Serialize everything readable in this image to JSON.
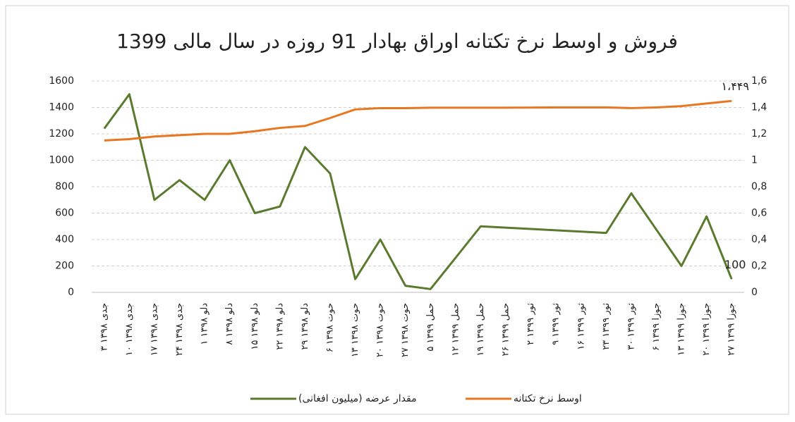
{
  "chart_data": {
    "type": "line",
    "title": "فروش و اوسط نرخ تکتانه اوراق بهادار 91 روزه در سال مالی 1399",
    "categories": [
      "۳ جدی ۱۳۹۸",
      "۱۰ جدی ۱۳۹۸",
      "۱۷ جدی ۱۳۹۸",
      "۲۴ جدی ۱۳۹۸",
      "۱ دلو ۱۳۹۸",
      "۸ دلو ۱۳۹۸",
      "۱۵ دلو ۱۳۹۸",
      "۲۲ دلو ۱۳۹۸",
      "۲۹ دلو ۱۳۹۸",
      "۶ حوت ۱۳۹۸",
      "۱۳ حوت ۱۳۹۸",
      "۲۰ حوت ۱۳۹۸",
      "۲۷ حوت ۱۳۹۸",
      "۵ حمل ۱۳۹۹",
      "۱۲ حمل ۱۳۹۹",
      "۱۹ حمل ۱۳۹۹",
      "۲۶ حمل ۱۳۹۹",
      "۲ ثور ۱۳۹۹",
      "۹ ثور ۱۳۹۹",
      "۱۶ ثور ۱۳۹۹",
      "۲۳ ثور ۱۳۹۹",
      "۳۰ ثور ۱۳۹۹",
      "۶ جوزا ۱۳۹۹",
      "۱۳ جوزا ۱۳۹۹",
      "۲۰ جوزا ۱۳۹۹",
      "۲۷ جوزا ۱۳۹۹"
    ],
    "series": [
      {
        "name": "مقدار عرضه (میلیون افغانی)",
        "color": "#5a7a2e",
        "axis": "y",
        "values": [
          1240,
          1500,
          700,
          850,
          700,
          1000,
          600,
          650,
          1100,
          900,
          100,
          400,
          50,
          25,
          262,
          500,
          490,
          480,
          470,
          460,
          450,
          750,
          475,
          200,
          575,
          100
        ],
        "value_labels": [
          null,
          null,
          null,
          null,
          null,
          null,
          null,
          null,
          null,
          null,
          null,
          null,
          null,
          null,
          null,
          null,
          null,
          null,
          null,
          null,
          null,
          null,
          null,
          null,
          null,
          "100"
        ]
      },
      {
        "name": "اوسط نرخ تکتانه",
        "color": "#e87722",
        "axis": "y2",
        "values": [
          1.15,
          1.16,
          1.18,
          1.19,
          1.2,
          1.2,
          1.22,
          1.245,
          1.26,
          1.32,
          1.385,
          1.395,
          1.395,
          1.398,
          1.398,
          1.398,
          1.398,
          1.399,
          1.4,
          1.4,
          1.4,
          1.395,
          1.4,
          1.41,
          1.43,
          1.449
        ],
        "value_labels": [
          null,
          null,
          null,
          null,
          null,
          null,
          null,
          null,
          null,
          null,
          null,
          null,
          null,
          null,
          null,
          null,
          null,
          null,
          null,
          null,
          null,
          null,
          null,
          null,
          null,
          "۱،۴۴۹"
        ]
      }
    ],
    "ylim": [
      0,
      1600
    ],
    "yticks": [
      0,
      200,
      400,
      600,
      800,
      1000,
      1200,
      1400,
      1600
    ],
    "y2lim": [
      0,
      1.6
    ],
    "y2ticks": [
      0,
      {
        "value": 0.2,
        "label": "0,2"
      },
      {
        "value": 0.4,
        "label": "0,4"
      },
      {
        "value": 0.6,
        "label": "0,6"
      },
      {
        "value": 0.8,
        "label": "0,8"
      },
      1,
      {
        "value": 1.2,
        "label": "1,2"
      },
      {
        "value": 1.4,
        "label": "1,4"
      },
      {
        "value": 1.6,
        "label": "1,6"
      }
    ],
    "grid": true,
    "legend": "bottom"
  }
}
